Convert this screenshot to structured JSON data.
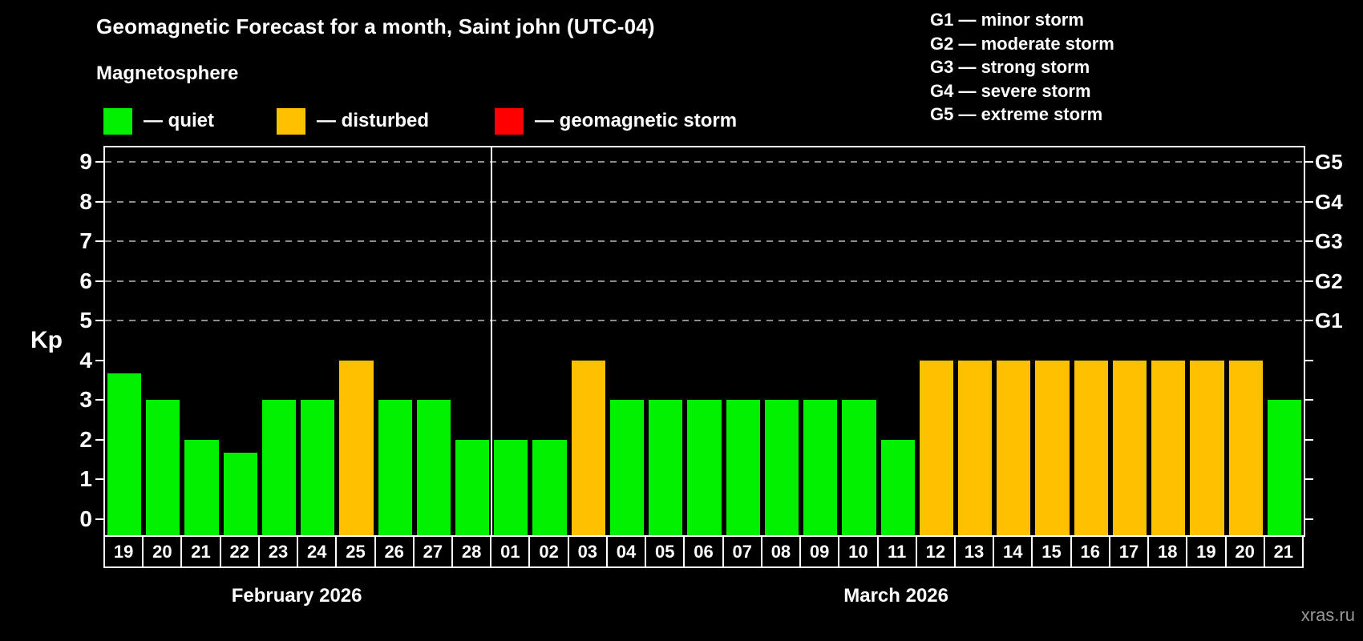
{
  "title": "Geomagnetic Forecast for a month, Saint john (UTC-04)",
  "subtitle": "Magnetosphere",
  "watermark": "xras.ru",
  "colors": {
    "quiet": "#00f000",
    "disturbed": "#ffc000",
    "storm": "#ff0000",
    "axis": "#ffffff",
    "grid": "#8c8c8c",
    "background": "#000000",
    "watermark": "#999999"
  },
  "legend": {
    "items": [
      {
        "status": "quiet",
        "label": "— quiet"
      },
      {
        "status": "disturbed",
        "label": "— disturbed"
      },
      {
        "status": "storm",
        "label": "— geomagnetic storm"
      }
    ]
  },
  "g_scale_legend": [
    "G1 — minor storm",
    "G2 — moderate storm",
    "G3 — strong storm",
    "G4 — severe storm",
    "G5 — extreme storm"
  ],
  "chart_data": {
    "type": "bar",
    "ylabel": "Kp",
    "ylim": [
      -0.4,
      9.4
    ],
    "yticks": [
      0,
      1,
      2,
      3,
      4,
      5,
      6,
      7,
      8,
      9
    ],
    "gridlines_at": [
      5,
      6,
      7,
      8,
      9
    ],
    "grid": "horizontal dashed at storm levels only",
    "legend_position": "top",
    "right_axis": [
      {
        "kp": 5,
        "label": "G1"
      },
      {
        "kp": 6,
        "label": "G2"
      },
      {
        "kp": 7,
        "label": "G3"
      },
      {
        "kp": 8,
        "label": "G4"
      },
      {
        "kp": 9,
        "label": "G5"
      }
    ],
    "months": [
      {
        "label": "February 2026",
        "days": [
          {
            "day": "19",
            "kp": 3.67,
            "status": "quiet"
          },
          {
            "day": "20",
            "kp": 3,
            "status": "quiet"
          },
          {
            "day": "21",
            "kp": 2,
            "status": "quiet"
          },
          {
            "day": "22",
            "kp": 1.67,
            "status": "quiet"
          },
          {
            "day": "23",
            "kp": 3,
            "status": "quiet"
          },
          {
            "day": "24",
            "kp": 3,
            "status": "quiet"
          },
          {
            "day": "25",
            "kp": 4,
            "status": "disturbed"
          },
          {
            "day": "26",
            "kp": 3,
            "status": "quiet"
          },
          {
            "day": "27",
            "kp": 3,
            "status": "quiet"
          },
          {
            "day": "28",
            "kp": 2,
            "status": "quiet"
          }
        ]
      },
      {
        "label": "March 2026",
        "days": [
          {
            "day": "01",
            "kp": 2,
            "status": "quiet"
          },
          {
            "day": "02",
            "kp": 2,
            "status": "quiet"
          },
          {
            "day": "03",
            "kp": 4,
            "status": "disturbed"
          },
          {
            "day": "04",
            "kp": 3,
            "status": "quiet"
          },
          {
            "day": "05",
            "kp": 3,
            "status": "quiet"
          },
          {
            "day": "06",
            "kp": 3,
            "status": "quiet"
          },
          {
            "day": "07",
            "kp": 3,
            "status": "quiet"
          },
          {
            "day": "08",
            "kp": 3,
            "status": "quiet"
          },
          {
            "day": "09",
            "kp": 3,
            "status": "quiet"
          },
          {
            "day": "10",
            "kp": 3,
            "status": "quiet"
          },
          {
            "day": "11",
            "kp": 2,
            "status": "quiet"
          },
          {
            "day": "12",
            "kp": 4,
            "status": "disturbed"
          },
          {
            "day": "13",
            "kp": 4,
            "status": "disturbed"
          },
          {
            "day": "14",
            "kp": 4,
            "status": "disturbed"
          },
          {
            "day": "15",
            "kp": 4,
            "status": "disturbed"
          },
          {
            "day": "16",
            "kp": 4,
            "status": "disturbed"
          },
          {
            "day": "17",
            "kp": 4,
            "status": "disturbed"
          },
          {
            "day": "18",
            "kp": 4,
            "status": "disturbed"
          },
          {
            "day": "19",
            "kp": 4,
            "status": "disturbed"
          },
          {
            "day": "20",
            "kp": 4,
            "status": "disturbed"
          },
          {
            "day": "21",
            "kp": 3,
            "status": "quiet"
          }
        ]
      }
    ]
  }
}
